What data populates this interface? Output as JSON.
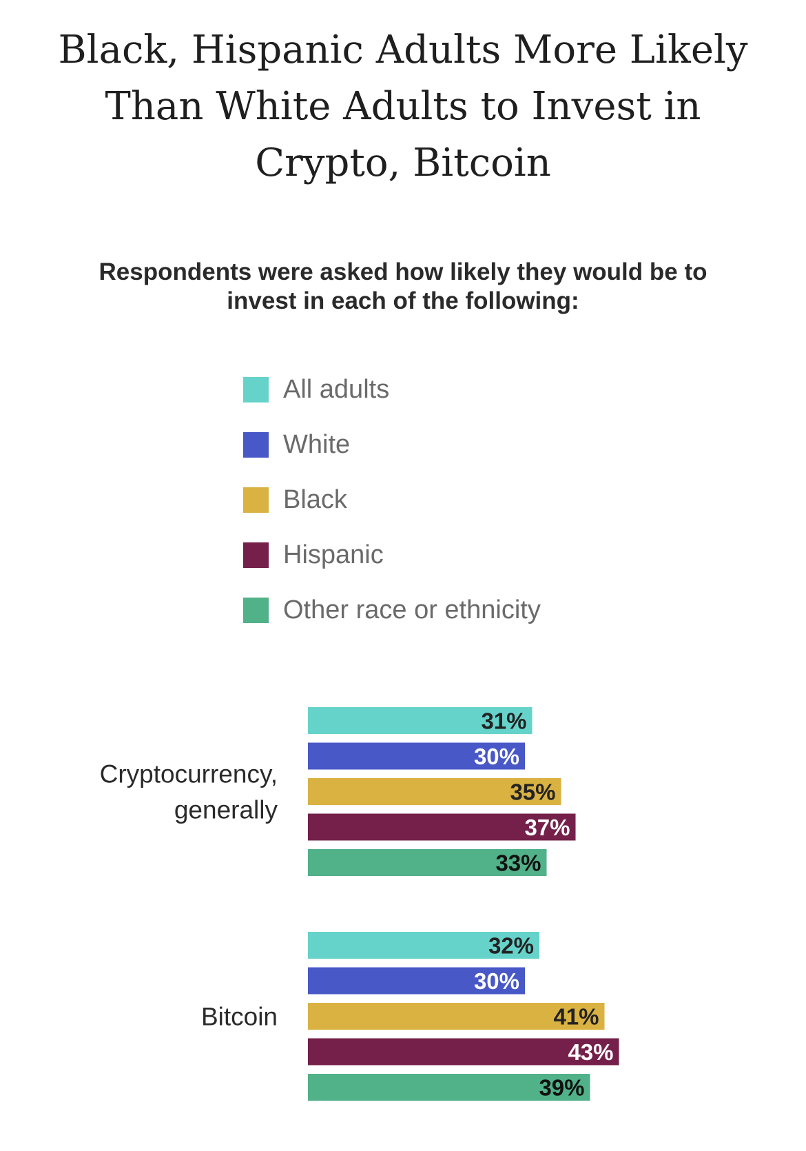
{
  "title_lines": [
    "Black, Hispanic Adults More Likely",
    "Than White Adults to Invest in",
    "Crypto, Bitcoin"
  ],
  "subtitle_lines": [
    "Respondents were asked how likely they would be to",
    "invest in each of the following:"
  ],
  "legend": [
    {
      "label": "All adults",
      "color": "#66d3cb"
    },
    {
      "label": "White",
      "color": "#4858c7"
    },
    {
      "label": "Black",
      "color": "#d9b242"
    },
    {
      "label": "Hispanic",
      "color": "#74204a"
    },
    {
      "label": "Other race or ethnicity",
      "color": "#51b189"
    }
  ],
  "chart_data": {
    "type": "bar",
    "orientation": "horizontal",
    "title": "Black, Hispanic Adults More Likely Than White Adults to Invest in Crypto, Bitcoin",
    "subtitle": "Respondents were asked how likely they would be to invest in each of the following:",
    "categories": [
      [
        "Cryptocurrency,",
        "generally"
      ],
      [
        "Bitcoin"
      ]
    ],
    "series": [
      {
        "name": "All adults",
        "color": "#66d3cb",
        "label_color": "#222222",
        "values": [
          31,
          32
        ],
        "labels": [
          "31%",
          "32%"
        ]
      },
      {
        "name": "White",
        "color": "#4858c7",
        "label_color": "#ffffff",
        "values": [
          30,
          30
        ],
        "labels": [
          "30%",
          "30%"
        ]
      },
      {
        "name": "Black",
        "color": "#d9b242",
        "label_color": "#222222",
        "values": [
          35,
          41
        ],
        "labels": [
          "35%",
          "41%"
        ]
      },
      {
        "name": "Hispanic",
        "color": "#74204a",
        "label_color": "#ffffff",
        "values": [
          37,
          43
        ],
        "labels": [
          "37%",
          "43%"
        ]
      },
      {
        "name": "Other race or ethnicity",
        "color": "#51b189",
        "label_color": "#111111",
        "values": [
          33,
          39
        ],
        "labels": [
          "33%",
          "39%"
        ]
      }
    ],
    "unit": "%",
    "xlim": [
      0,
      73
    ],
    "grid": false,
    "axes_visible": false,
    "legend_position": "top"
  }
}
